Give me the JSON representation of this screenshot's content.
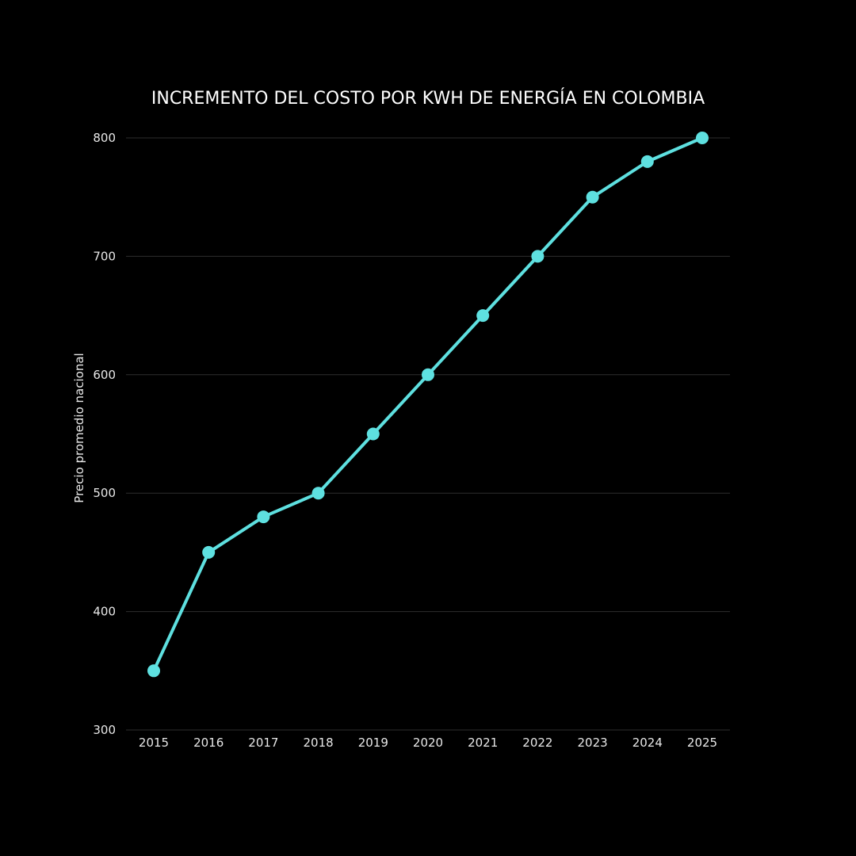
{
  "chart_data": {
    "type": "line",
    "title": "INCREMENTO DEL COSTO POR KWH DE ENERGÍA EN COLOMBIA",
    "xlabel": "",
    "ylabel": "Precio promedio nacional",
    "x": [
      "2015",
      "2016",
      "2017",
      "2018",
      "2019",
      "2020",
      "2021",
      "2022",
      "2023",
      "2024",
      "2025"
    ],
    "series": [
      {
        "values": [
          350,
          450,
          480,
          500,
          550,
          600,
          650,
          700,
          750,
          780,
          800
        ]
      }
    ],
    "ylim": [
      300,
      800
    ],
    "yticks": [
      "300",
      "400",
      "500",
      "600",
      "700",
      "800"
    ],
    "grid": true,
    "legend": "none",
    "colors": {
      "background": "#000000",
      "line": "#5ee0e0",
      "grid": "#2e2e2e",
      "text": "#e8e8e8"
    }
  }
}
